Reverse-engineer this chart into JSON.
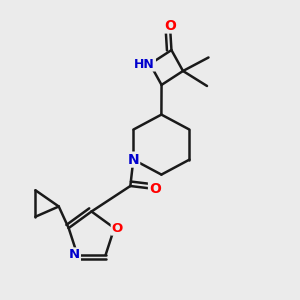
{
  "background_color": "#ebebeb",
  "atom_colors": {
    "O": "#ff0000",
    "N": "#0000cd",
    "C": "#1a1a1a",
    "H": "#1a1a1a"
  },
  "bond_color": "#1a1a1a",
  "bond_width": 1.8,
  "figsize": [
    3.0,
    3.0
  ],
  "dpi": 100
}
